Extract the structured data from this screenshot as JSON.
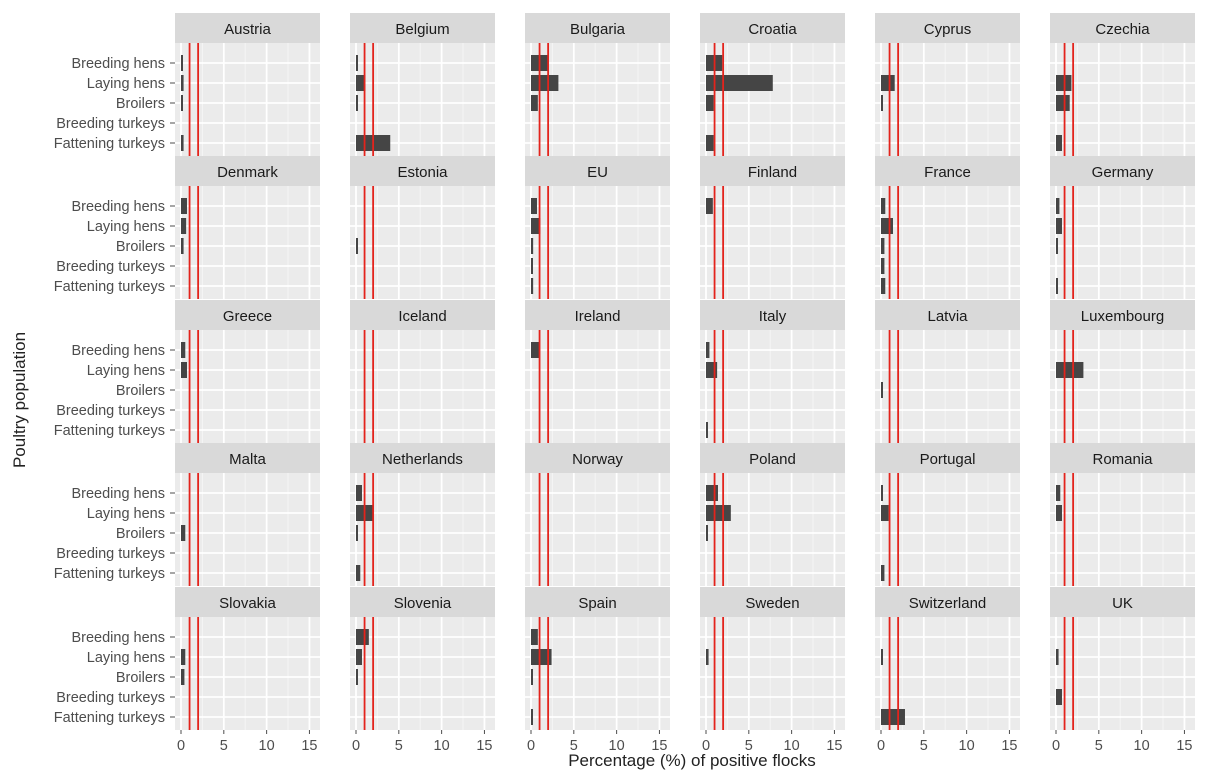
{
  "chart_data": {
    "type": "bar",
    "orientation": "horizontal",
    "xlabel": "Percentage (%) of positive flocks",
    "ylabel": "Poultry population",
    "categories": [
      "Breeding hens",
      "Laying hens",
      "Broilers",
      "Breeding turkeys",
      "Fattening turkeys"
    ],
    "xlim": [
      0,
      16
    ],
    "xticks": [
      0,
      5,
      10,
      15
    ],
    "grid": true,
    "reference_lines": {
      "values": [
        1,
        2
      ],
      "color": "#e3231c"
    },
    "colors": {
      "bar": "#454545",
      "panel_bg": "#ebebeb",
      "strip_bg": "#d9d9d9",
      "grid": "#ffffff"
    },
    "panels": [
      {
        "name": "Austria",
        "values": [
          0.05,
          0.3,
          0.15,
          null,
          0.3
        ]
      },
      {
        "name": "Belgium",
        "values": [
          0.15,
          1.1,
          0.15,
          null,
          4.0
        ]
      },
      {
        "name": "Bulgaria",
        "values": [
          2.0,
          3.2,
          0.8,
          null,
          null
        ]
      },
      {
        "name": "Croatia",
        "values": [
          1.9,
          7.8,
          0.9,
          null,
          0.9
        ]
      },
      {
        "name": "Cyprus",
        "values": [
          null,
          1.6,
          0.1,
          null,
          null
        ]
      },
      {
        "name": "Czechia",
        "values": [
          null,
          1.8,
          1.6,
          null,
          0.7
        ]
      },
      {
        "name": "Denmark",
        "values": [
          0.7,
          0.6,
          0.3,
          null,
          null
        ]
      },
      {
        "name": "Estonia",
        "values": [
          null,
          null,
          0.1,
          null,
          null
        ]
      },
      {
        "name": "EU",
        "values": [
          0.7,
          1.1,
          0.25,
          0.2,
          0.25
        ]
      },
      {
        "name": "Finland",
        "values": [
          0.8,
          null,
          null,
          null,
          null
        ]
      },
      {
        "name": "France",
        "values": [
          0.5,
          1.4,
          0.4,
          0.4,
          0.5
        ]
      },
      {
        "name": "Germany",
        "values": [
          0.4,
          0.7,
          0.1,
          null,
          0.1
        ]
      },
      {
        "name": "Greece",
        "values": [
          0.5,
          0.7,
          null,
          null,
          null
        ]
      },
      {
        "name": "Iceland",
        "values": [
          null,
          null,
          null,
          null,
          null
        ]
      },
      {
        "name": "Ireland",
        "values": [
          1.0,
          null,
          null,
          null,
          null
        ]
      },
      {
        "name": "Italy",
        "values": [
          0.4,
          1.3,
          null,
          null,
          0.1
        ]
      },
      {
        "name": "Latvia",
        "values": [
          null,
          null,
          0.1,
          null,
          null
        ]
      },
      {
        "name": "Luxembourg",
        "values": [
          null,
          3.2,
          null,
          null,
          null
        ]
      },
      {
        "name": "Malta",
        "values": [
          null,
          null,
          0.5,
          null,
          null
        ]
      },
      {
        "name": "Netherlands",
        "values": [
          0.7,
          2.0,
          0.1,
          null,
          0.5
        ]
      },
      {
        "name": "Norway",
        "values": [
          null,
          null,
          null,
          null,
          null
        ]
      },
      {
        "name": "Poland",
        "values": [
          1.4,
          2.9,
          0.1,
          null,
          null
        ]
      },
      {
        "name": "Portugal",
        "values": [
          0.1,
          0.9,
          null,
          null,
          0.4
        ]
      },
      {
        "name": "Romania",
        "values": [
          0.5,
          0.7,
          null,
          null,
          null
        ]
      },
      {
        "name": "Slovakia",
        "values": [
          null,
          0.5,
          0.4,
          null,
          null
        ]
      },
      {
        "name": "Slovenia",
        "values": [
          1.5,
          0.7,
          0.1,
          null,
          null
        ]
      },
      {
        "name": "Spain",
        "values": [
          0.8,
          2.4,
          0.15,
          null,
          0.15
        ]
      },
      {
        "name": "Sweden",
        "values": [
          null,
          0.3,
          null,
          null,
          null
        ]
      },
      {
        "name": "Switzerland",
        "values": [
          null,
          0.15,
          null,
          null,
          2.8
        ]
      },
      {
        "name": "UK",
        "values": [
          null,
          0.3,
          null,
          0.7,
          null
        ]
      }
    ]
  }
}
